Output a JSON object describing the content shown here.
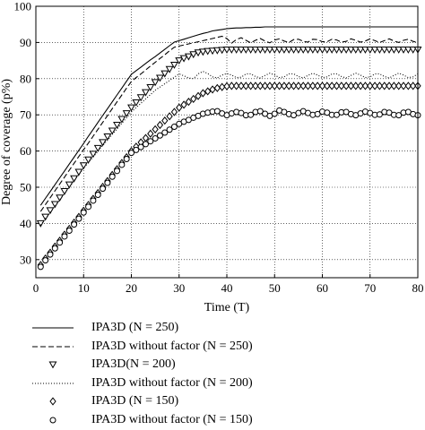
{
  "chart_data": {
    "type": "line",
    "xlabel": "Time (T)",
    "ylabel": "Degree of coverage (p%)",
    "xlim": [
      0,
      80
    ],
    "ylim": [
      25,
      100
    ],
    "xticks": [
      "0",
      "10",
      "20",
      "30",
      "40",
      "50",
      "60",
      "70",
      "80"
    ],
    "yticks": [
      "30",
      "40",
      "50",
      "60",
      "70",
      "80",
      "90",
      "100"
    ],
    "grid": true,
    "legend_position": "below",
    "x": [
      1,
      2,
      3,
      4,
      5,
      6,
      7,
      8,
      9,
      10,
      11,
      12,
      13,
      14,
      15,
      16,
      17,
      18,
      19,
      20,
      21,
      22,
      23,
      24,
      25,
      26,
      27,
      28,
      29,
      30,
      31,
      32,
      33,
      34,
      35,
      36,
      37,
      38,
      39,
      40,
      41,
      42,
      43,
      44,
      45,
      46,
      47,
      48,
      49,
      50,
      51,
      52,
      53,
      54,
      55,
      56,
      57,
      58,
      59,
      60,
      61,
      62,
      63,
      64,
      65,
      66,
      67,
      68,
      69,
      70,
      71,
      72,
      73,
      74,
      75,
      76,
      77,
      78,
      79,
      80
    ],
    "series": [
      {
        "name": "IPA3D (N = 250)",
        "style": "solid",
        "values": [
          45.0,
          46.9,
          48.8,
          50.7,
          52.6,
          54.5,
          56.4,
          58.3,
          60.2,
          62.1,
          64.1,
          66.0,
          67.9,
          69.8,
          71.7,
          73.6,
          75.5,
          77.4,
          79.3,
          81.2,
          82.2,
          83.2,
          84.2,
          85.2,
          86.1,
          87.1,
          88.1,
          89.1,
          90.1,
          90.5,
          90.9,
          91.3,
          91.7,
          92.1,
          92.5,
          92.8,
          93.2,
          93.4,
          93.6,
          93.8,
          93.9,
          94.0,
          94.0,
          94.1,
          94.1,
          94.2,
          94.2,
          94.3,
          94.3,
          94.3,
          94.3,
          94.3,
          94.3,
          94.3,
          94.3,
          94.3,
          94.3,
          94.3,
          94.3,
          94.3,
          94.3,
          94.3,
          94.3,
          94.3,
          94.3,
          94.3,
          94.3,
          94.3,
          94.3,
          94.3,
          94.3,
          94.3,
          94.3,
          94.3,
          94.3,
          94.3,
          94.3,
          94.3,
          94.3,
          94.3
        ]
      },
      {
        "name": "IPA3D without factor (N = 250)",
        "style": "dashed",
        "values": [
          43.3,
          45.2,
          47.1,
          49.0,
          50.9,
          52.8,
          54.7,
          56.6,
          58.5,
          60.4,
          62.2,
          64.1,
          66.0,
          67.9,
          69.8,
          71.7,
          73.6,
          75.5,
          77.4,
          79.2,
          80.3,
          81.3,
          82.4,
          83.5,
          84.5,
          85.6,
          86.6,
          87.7,
          88.7,
          89.0,
          89.3,
          89.6,
          89.9,
          90.2,
          90.5,
          90.8,
          91.1,
          91.4,
          91.7,
          91.1,
          89.8,
          90.8,
          91.3,
          90.6,
          89.9,
          90.6,
          91.1,
          90.4,
          89.9,
          90.7,
          91.0,
          90.4,
          90.0,
          90.8,
          90.9,
          90.3,
          90.1,
          90.9,
          90.8,
          90.2,
          90.2,
          90.9,
          90.7,
          90.1,
          90.3,
          91.0,
          90.6,
          90.1,
          90.4,
          91.0,
          90.5,
          90.0,
          90.5,
          91.0,
          90.4,
          90.0,
          90.6,
          90.9,
          90.3,
          90.0
        ]
      },
      {
        "name": "IPA3D(N = 200)",
        "style": "triangle-down",
        "values": [
          40.0,
          41.8,
          43.6,
          45.3,
          47.1,
          48.9,
          50.7,
          52.4,
          54.2,
          56.0,
          57.6,
          59.2,
          60.8,
          62.4,
          64.0,
          65.6,
          67.2,
          68.8,
          70.4,
          72.0,
          73.4,
          74.8,
          76.2,
          77.6,
          79.0,
          80.2,
          81.4,
          82.6,
          83.8,
          85.0,
          85.6,
          86.1,
          86.7,
          87.2,
          87.4,
          87.6,
          87.7,
          87.8,
          87.9,
          88.0,
          88.0,
          88.0,
          88.0,
          88.0,
          88.0,
          88.0,
          88.0,
          88.0,
          88.0,
          88.0,
          88.0,
          88.0,
          88.0,
          88.0,
          88.0,
          88.0,
          88.0,
          88.0,
          88.0,
          88.0,
          88.0,
          88.0,
          88.0,
          88.0,
          88.0,
          88.0,
          88.0,
          88.0,
          88.0,
          88.0,
          88.0,
          88.0,
          88.0,
          88.0,
          88.0,
          88.0,
          88.0,
          88.0,
          88.0,
          88.0
        ]
      },
      {
        "name": "IPA3D without factor (N = 200)",
        "style": "dotted",
        "values": [
          39.5,
          41.3,
          43.0,
          44.8,
          46.5,
          48.3,
          50.0,
          51.8,
          53.5,
          55.3,
          56.8,
          58.4,
          59.9,
          61.5,
          63.0,
          64.6,
          66.1,
          67.7,
          69.2,
          70.8,
          72.0,
          73.2,
          74.4,
          75.6,
          76.8,
          77.7,
          78.6,
          79.5,
          80.4,
          81.3,
          80.8,
          80.2,
          80.0,
          81.3,
          82.0,
          81.4,
          80.5,
          80.2,
          81.0,
          81.4,
          81.0,
          80.3,
          80.4,
          81.3,
          81.3,
          80.6,
          80.2,
          80.9,
          81.5,
          81.0,
          80.3,
          80.5,
          81.3,
          81.3,
          80.6,
          80.2,
          80.9,
          81.5,
          81.0,
          80.3,
          80.5,
          81.3,
          81.3,
          80.6,
          80.2,
          80.9,
          81.5,
          81.0,
          80.3,
          80.5,
          81.3,
          81.3,
          80.6,
          80.2,
          80.9,
          81.5,
          81.0,
          80.3,
          80.5,
          81.3
        ]
      },
      {
        "name": "IPA3D (N = 150)",
        "style": "diamond",
        "values": [
          28.5,
          30.3,
          31.9,
          33.6,
          35.2,
          36.9,
          38.5,
          40.2,
          41.8,
          43.5,
          45.1,
          46.8,
          48.4,
          50.1,
          51.7,
          53.4,
          55.0,
          56.7,
          58.3,
          60.0,
          61.2,
          62.4,
          63.6,
          64.8,
          66.0,
          67.2,
          68.4,
          69.6,
          70.8,
          72.0,
          72.8,
          73.6,
          74.4,
          75.2,
          76.0,
          76.5,
          77.0,
          77.4,
          77.7,
          77.9,
          78.0,
          78.0,
          78.0,
          78.0,
          78.0,
          78.0,
          78.0,
          78.0,
          78.0,
          78.0,
          78.0,
          78.0,
          78.0,
          78.0,
          78.0,
          78.0,
          78.0,
          78.0,
          78.0,
          78.0,
          78.0,
          78.0,
          78.0,
          78.0,
          78.0,
          78.0,
          78.0,
          78.0,
          78.0,
          78.0,
          78.0,
          78.0,
          78.0,
          78.0,
          78.0,
          78.0,
          78.0,
          78.0,
          78.0,
          78.0
        ]
      },
      {
        "name": "IPA3D without factor (N = 150)",
        "style": "circle",
        "values": [
          28.0,
          29.8,
          31.4,
          33.1,
          34.7,
          36.4,
          38.0,
          39.7,
          41.3,
          43.0,
          44.6,
          46.3,
          47.9,
          49.6,
          51.2,
          52.9,
          54.5,
          56.2,
          57.8,
          59.5,
          60.3,
          61.1,
          61.9,
          62.7,
          63.5,
          64.3,
          65.1,
          65.9,
          66.7,
          67.5,
          68.1,
          68.6,
          69.2,
          69.7,
          70.3,
          70.6,
          70.9,
          71.0,
          70.4,
          69.9,
          70.4,
          70.8,
          70.5,
          69.9,
          70.0,
          70.8,
          71.0,
          70.3,
          69.7,
          70.3,
          71.2,
          70.8,
          70.2,
          69.9,
          70.5,
          71.0,
          70.5,
          70.0,
          70.2,
          70.9,
          70.6,
          70.0,
          70.0,
          70.7,
          70.8,
          70.2,
          69.9,
          70.4,
          70.9,
          70.5,
          70.0,
          70.1,
          70.8,
          70.6,
          70.0,
          69.9,
          70.6,
          70.8,
          70.2,
          69.9
        ]
      }
    ]
  }
}
